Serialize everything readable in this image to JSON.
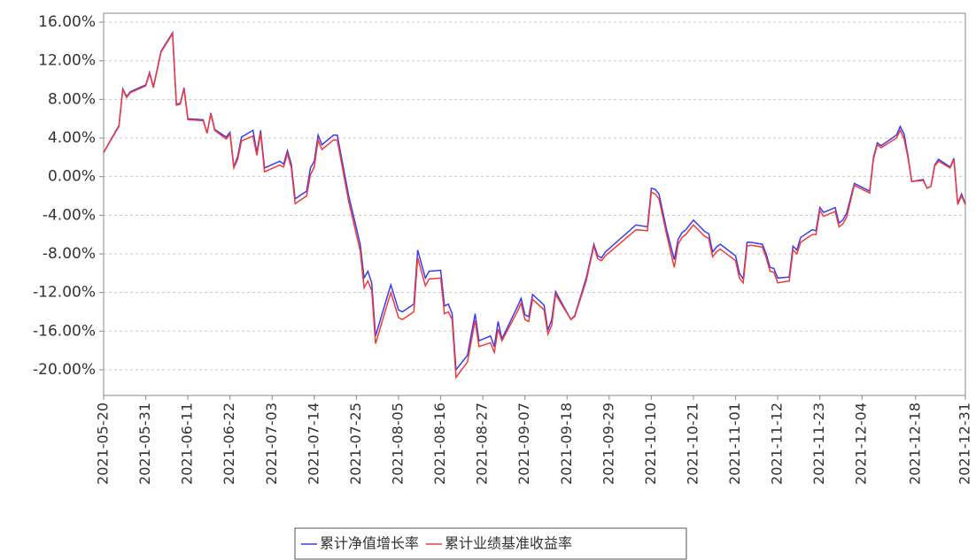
{
  "chart_data": {
    "type": "line",
    "x": [
      "2021-05-20",
      "2021-05-24",
      "2021-05-25",
      "2021-05-26",
      "2021-05-27",
      "2021-05-31",
      "2021-06-01",
      "2021-06-02",
      "2021-06-04",
      "2021-06-07",
      "2021-06-08",
      "2021-06-09",
      "2021-06-10",
      "2021-06-11",
      "2021-06-15",
      "2021-06-16",
      "2021-06-17",
      "2021-06-18",
      "2021-06-21",
      "2021-06-22",
      "2021-06-23",
      "2021-06-24",
      "2021-06-25",
      "2021-06-28",
      "2021-06-29",
      "2021-06-30",
      "2021-07-01",
      "2021-07-05",
      "2021-07-06",
      "2021-07-07",
      "2021-07-08",
      "2021-07-09",
      "2021-07-12",
      "2021-07-13",
      "2021-07-14",
      "2021-07-15",
      "2021-07-16",
      "2021-07-19",
      "2021-07-20",
      "2021-07-23",
      "2021-07-26",
      "2021-07-27",
      "2021-07-28",
      "2021-07-29",
      "2021-07-30",
      "2021-08-02",
      "2021-08-03",
      "2021-08-05",
      "2021-08-06",
      "2021-08-09",
      "2021-08-10",
      "2021-08-12",
      "2021-08-13",
      "2021-08-16",
      "2021-08-17",
      "2021-08-18",
      "2021-08-19",
      "2021-08-20",
      "2021-08-23",
      "2021-08-25",
      "2021-08-26",
      "2021-08-29",
      "2021-08-30",
      "2021-08-31",
      "2021-09-01",
      "2021-09-05",
      "2021-09-06",
      "2021-09-07",
      "2021-09-08",
      "2021-09-09",
      "2021-09-12",
      "2021-09-13",
      "2021-09-14",
      "2021-09-15",
      "2021-09-19",
      "2021-09-20",
      "2021-09-23",
      "2021-09-25",
      "2021-09-26",
      "2021-09-27",
      "2021-09-28",
      "2021-10-06",
      "2021-10-09",
      "2021-10-10",
      "2021-10-11",
      "2021-10-12",
      "2021-10-14",
      "2021-10-16",
      "2021-10-17",
      "2021-10-18",
      "2021-10-19",
      "2021-10-21",
      "2021-10-22",
      "2021-10-24",
      "2021-10-25",
      "2021-10-26",
      "2021-10-27",
      "2021-10-28",
      "2021-10-30",
      "2021-11-01",
      "2021-11-02",
      "2021-11-03",
      "2021-11-04",
      "2021-11-05",
      "2021-11-08",
      "2021-11-09",
      "2021-11-10",
      "2021-11-11",
      "2021-11-12",
      "2021-11-15",
      "2021-11-16",
      "2021-11-17",
      "2021-11-18",
      "2021-11-21",
      "2021-11-22",
      "2021-11-23",
      "2021-11-24",
      "2021-11-27",
      "2021-11-28",
      "2021-11-29",
      "2021-11-30",
      "2021-12-02",
      "2021-12-06",
      "2021-12-07",
      "2021-12-08",
      "2021-12-09",
      "2021-12-13",
      "2021-12-14",
      "2021-12-15",
      "2021-12-16",
      "2021-12-17",
      "2021-12-20",
      "2021-12-21",
      "2021-12-22",
      "2021-12-23",
      "2021-12-24",
      "2021-12-27",
      "2021-12-28",
      "2021-12-29",
      "2021-12-30",
      "2021-12-31"
    ],
    "series": [
      {
        "name": "累计净值增长率",
        "color": "#3b3bf0",
        "values": [
          2.5,
          5.3,
          9.1,
          8.3,
          8.8,
          9.5,
          10.8,
          9.3,
          13.0,
          14.9,
          7.5,
          7.6,
          9.2,
          6.0,
          5.9,
          4.5,
          6.6,
          4.9,
          4.1,
          4.6,
          1.0,
          2.1,
          4.1,
          4.8,
          2.5,
          4.8,
          0.9,
          1.6,
          1.3,
          2.7,
          1.3,
          -2.3,
          -1.5,
          0.9,
          1.6,
          4.3,
          3.3,
          4.3,
          4.3,
          -2.0,
          -7.0,
          -10.5,
          -9.8,
          -11.0,
          -16.5,
          -12.5,
          -11.2,
          -13.8,
          -14.0,
          -13.2,
          -7.6,
          -10.5,
          -9.8,
          -9.7,
          -13.4,
          -13.2,
          -14.2,
          -20.0,
          -18.5,
          -14.2,
          -17.0,
          -16.5,
          -17.6,
          -15.0,
          -16.8,
          -13.5,
          -12.6,
          -14.3,
          -14.5,
          -12.2,
          -13.3,
          -15.9,
          -14.8,
          -11.9,
          -14.8,
          -14.4,
          -10.5,
          -7.0,
          -8.2,
          -8.4,
          -7.8,
          -5.0,
          -5.2,
          -1.2,
          -1.3,
          -1.8,
          -5.5,
          -8.6,
          -6.5,
          -5.8,
          -5.5,
          -4.5,
          -4.9,
          -5.7,
          -5.9,
          -7.8,
          -7.3,
          -7.0,
          -7.6,
          -8.2,
          -10.0,
          -10.6,
          -6.8,
          -6.8,
          -7.0,
          -8.0,
          -9.4,
          -9.5,
          -10.5,
          -10.4,
          -7.2,
          -7.6,
          -6.3,
          -5.5,
          -5.6,
          -3.2,
          -3.7,
          -3.2,
          -4.8,
          -4.5,
          -3.8,
          -0.7,
          -1.5,
          2.0,
          3.5,
          3.2,
          4.3,
          5.2,
          4.4,
          2.2,
          -0.5,
          -0.3,
          -1.2,
          -1.0,
          1.2,
          1.8,
          1.0,
          1.9,
          -2.8,
          -1.8,
          -2.8
        ]
      },
      {
        "name": "累计业绩基准收益率",
        "color": "#f03b3b",
        "values": [
          2.5,
          5.2,
          9.0,
          8.2,
          8.7,
          9.4,
          10.7,
          9.2,
          12.9,
          14.8,
          7.4,
          7.5,
          9.1,
          5.9,
          5.8,
          4.5,
          6.5,
          4.8,
          3.9,
          4.4,
          0.9,
          1.8,
          3.7,
          4.2,
          2.2,
          4.5,
          0.5,
          1.2,
          1.0,
          2.4,
          0.9,
          -2.8,
          -2.0,
          0.2,
          1.0,
          3.8,
          2.8,
          3.8,
          3.8,
          -2.6,
          -7.7,
          -11.5,
          -10.8,
          -11.8,
          -17.3,
          -13.3,
          -12.0,
          -14.6,
          -14.8,
          -14.0,
          -8.4,
          -11.3,
          -10.6,
          -10.5,
          -14.2,
          -14.0,
          -14.8,
          -20.8,
          -19.2,
          -14.9,
          -17.6,
          -17.2,
          -18.2,
          -15.8,
          -17.0,
          -14.0,
          -13.1,
          -14.8,
          -15.0,
          -12.7,
          -13.8,
          -16.3,
          -15.4,
          -12.2,
          -14.8,
          -14.5,
          -10.8,
          -7.2,
          -8.5,
          -8.7,
          -8.2,
          -5.5,
          -5.6,
          -1.6,
          -1.8,
          -2.3,
          -6.0,
          -9.4,
          -7.0,
          -6.3,
          -6.0,
          -5.0,
          -5.4,
          -6.2,
          -6.4,
          -8.3,
          -7.8,
          -7.5,
          -8.1,
          -8.7,
          -10.5,
          -11.0,
          -7.2,
          -7.1,
          -7.3,
          -8.4,
          -9.8,
          -9.9,
          -11.0,
          -10.8,
          -7.6,
          -8.0,
          -6.8,
          -6.0,
          -6.0,
          -3.5,
          -4.1,
          -3.6,
          -5.2,
          -4.9,
          -4.2,
          -0.9,
          -1.7,
          1.8,
          3.3,
          3.0,
          4.0,
          4.8,
          3.9,
          2.0,
          -0.5,
          -0.4,
          -1.2,
          -1.0,
          1.1,
          1.6,
          0.9,
          1.8,
          -2.9,
          -2.0,
          -2.9
        ]
      }
    ],
    "xlim": [
      "2021-05-20",
      "2021-12-31"
    ],
    "xticks": [
      "2021-05-20",
      "2021-05-31",
      "2021-06-11",
      "2021-06-22",
      "2021-07-03",
      "2021-07-14",
      "2021-07-25",
      "2021-08-05",
      "2021-08-16",
      "2021-08-27",
      "2021-09-07",
      "2021-09-18",
      "2021-09-29",
      "2021-10-10",
      "2021-10-21",
      "2021-11-01",
      "2021-11-12",
      "2021-11-23",
      "2021-12-04",
      "2021-12-18",
      "2021-12-31"
    ],
    "ylim": [
      -22.66,
      16.92
    ],
    "yticks": [
      {
        "value": 16,
        "label": "16.00%"
      },
      {
        "value": 12,
        "label": "12.00%"
      },
      {
        "value": 8,
        "label": "8.00%"
      },
      {
        "value": 4,
        "label": "4.00%"
      },
      {
        "value": 0,
        "label": "0.00%"
      },
      {
        "value": -4,
        "label": "-4.00%"
      },
      {
        "value": -8,
        "label": "-8.00%"
      },
      {
        "value": -12,
        "label": "-12.00%"
      },
      {
        "value": -16,
        "label": "-16.00%"
      },
      {
        "value": -20,
        "label": "-20.00%"
      }
    ],
    "grid": true,
    "legend": "bottom"
  }
}
